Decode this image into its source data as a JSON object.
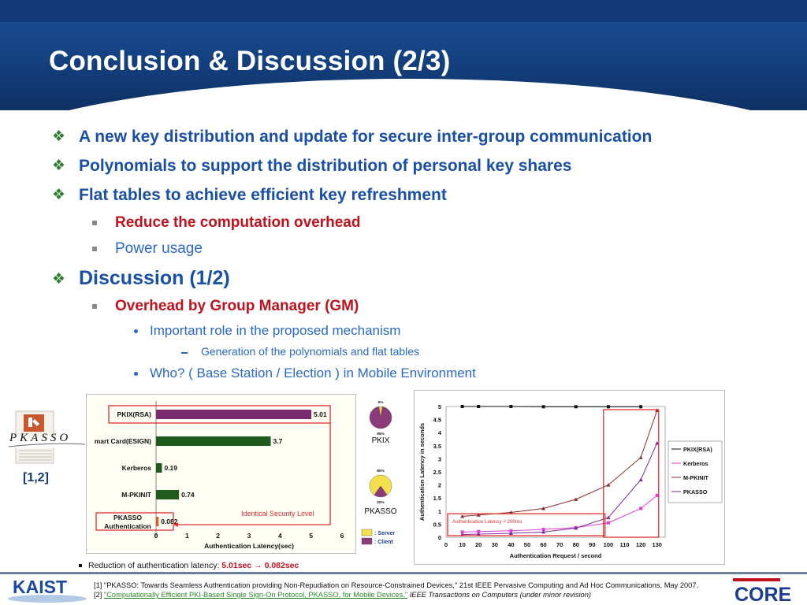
{
  "slide": {
    "title": "Conclusion & Discussion (2/3)"
  },
  "bullets": {
    "b1": "A new key distribution and update for secure inter-group communication",
    "b2": "Polynomials to support the distribution of personal key shares",
    "b3": "Flat tables to achieve efficient key refreshment",
    "b3a": "Reduce the computation overhead",
    "b3b": "Power usage",
    "b4": "Discussion (1/2)",
    "b4a": "Overhead by Group Manager (GM)",
    "b4a1": "Important role in the proposed mechanism",
    "b4a1a": "Generation of the polynomials and flat tables",
    "b4a2": "Who? ( Base Station / Election ) in Mobile Environment"
  },
  "logo": {
    "name": "PKASSO",
    "ref": "[1,2]"
  },
  "chart_data": [
    {
      "type": "bar",
      "orientation": "horizontal",
      "categories": [
        "PKIX(RSA)",
        "mart Card(ESIGN)",
        "Kerberos",
        "M-PKINIT",
        "PKASSO Authentication"
      ],
      "values": [
        5.01,
        3.7,
        0.19,
        0.74,
        0.082
      ],
      "value_labels": [
        "5.01",
        "3.7",
        "0.19",
        "0.74",
        "0.082"
      ],
      "xlabel": "Authentication Latency(sec)",
      "xlim": [
        0,
        6
      ],
      "xticks": [
        "0",
        "1",
        "2",
        "3",
        "4",
        "5",
        "6"
      ],
      "annotation": "Identical Security Level",
      "colors": {
        "pkix": "#7a2a6e",
        "other": "#1f5a1f",
        "pkasso": "#e05a1a"
      }
    },
    {
      "type": "pie",
      "name": "PKIX",
      "slices": [
        {
          "label": "5%",
          "value": 5,
          "color": "#f4e04a"
        },
        {
          "label": "95%",
          "value": 95,
          "color": "#8b3a7a"
        }
      ]
    },
    {
      "type": "pie",
      "name": "PKASSO",
      "slices": [
        {
          "label": "80%",
          "value": 80,
          "color": "#f4e04a"
        },
        {
          "label": "20%",
          "value": 20,
          "color": "#8b3a7a"
        }
      ]
    },
    {
      "type": "legend",
      "entries": [
        {
          "label": ": Server",
          "color": "#f4e04a"
        },
        {
          "label": ": Client",
          "color": "#8b3a7a"
        }
      ]
    },
    {
      "type": "line",
      "x": [
        0,
        10,
        20,
        30,
        40,
        50,
        60,
        70,
        80,
        90,
        100,
        110,
        120,
        130
      ],
      "xticks": [
        "0",
        "10",
        "20",
        "30",
        "40",
        "50",
        "60",
        "70",
        "80",
        "90",
        "100",
        "110",
        "120",
        "130"
      ],
      "yticks": [
        "0",
        "0.5",
        "1",
        "1.5",
        "2",
        "2.5",
        "3",
        "3.5",
        "4",
        "4.5",
        "5"
      ],
      "xlim": [
        0,
        135
      ],
      "ylim": [
        0,
        5
      ],
      "xlabel": "Authentication Request / second",
      "ylabel": "Authentication Latency in seconds",
      "annotation": "Authentication Latency < 200ms",
      "series": [
        {
          "name": "PKIX(RSA)",
          "color": "#111111",
          "marker": "square",
          "points": [
            [
              10,
              5.0
            ],
            [
              20,
              5.0
            ],
            [
              40,
              5.0
            ],
            [
              60,
              4.99
            ],
            [
              80,
              4.99
            ],
            [
              100,
              4.99
            ],
            [
              120,
              4.99
            ]
          ]
        },
        {
          "name": "Kerberos",
          "color": "#e63ad8",
          "marker": "square",
          "points": [
            [
              10,
              0.2
            ],
            [
              20,
              0.22
            ],
            [
              40,
              0.25
            ],
            [
              60,
              0.3
            ],
            [
              80,
              0.37
            ],
            [
              100,
              0.55
            ],
            [
              120,
              1.1
            ],
            [
              130,
              1.6
            ]
          ]
        },
        {
          "name": "M-PKINIT",
          "color": "#8b2a2a",
          "marker": "triangle",
          "points": [
            [
              10,
              0.8
            ],
            [
              20,
              0.85
            ],
            [
              40,
              0.95
            ],
            [
              60,
              1.1
            ],
            [
              80,
              1.45
            ],
            [
              100,
              2.0
            ],
            [
              120,
              3.05
            ],
            [
              130,
              4.85
            ]
          ]
        },
        {
          "name": "PKASSO",
          "color": "#7a2a9a",
          "marker": "triangle",
          "points": [
            [
              10,
              0.1
            ],
            [
              20,
              0.12
            ],
            [
              40,
              0.15
            ],
            [
              60,
              0.2
            ],
            [
              80,
              0.35
            ],
            [
              100,
              0.75
            ],
            [
              120,
              2.2
            ],
            [
              130,
              3.6
            ]
          ]
        }
      ]
    }
  ],
  "note": {
    "prefix": "Reduction of authentication latency: ",
    "value": "5.01sec → 0.082sec"
  },
  "footer": {
    "ref1": "[1] \"PKASSO: Towards Seamless Authentication providing Non-Repudiation on Resource-Constrained Devices,\" 21st IEEE Pervasive Computing and Ad Hoc Communications, May 2007.",
    "ref2_prefix": "[2] ",
    "ref2_link": "\"Computationally Efficient PKI-Based Single Sign-On Protocol, PKASSO, for Mobile Devices,\"",
    "ref2_suffix": " IEEE Transactions on Computers (under minor revision)",
    "left_logo": "KAIST",
    "right_logo": "CORE"
  }
}
